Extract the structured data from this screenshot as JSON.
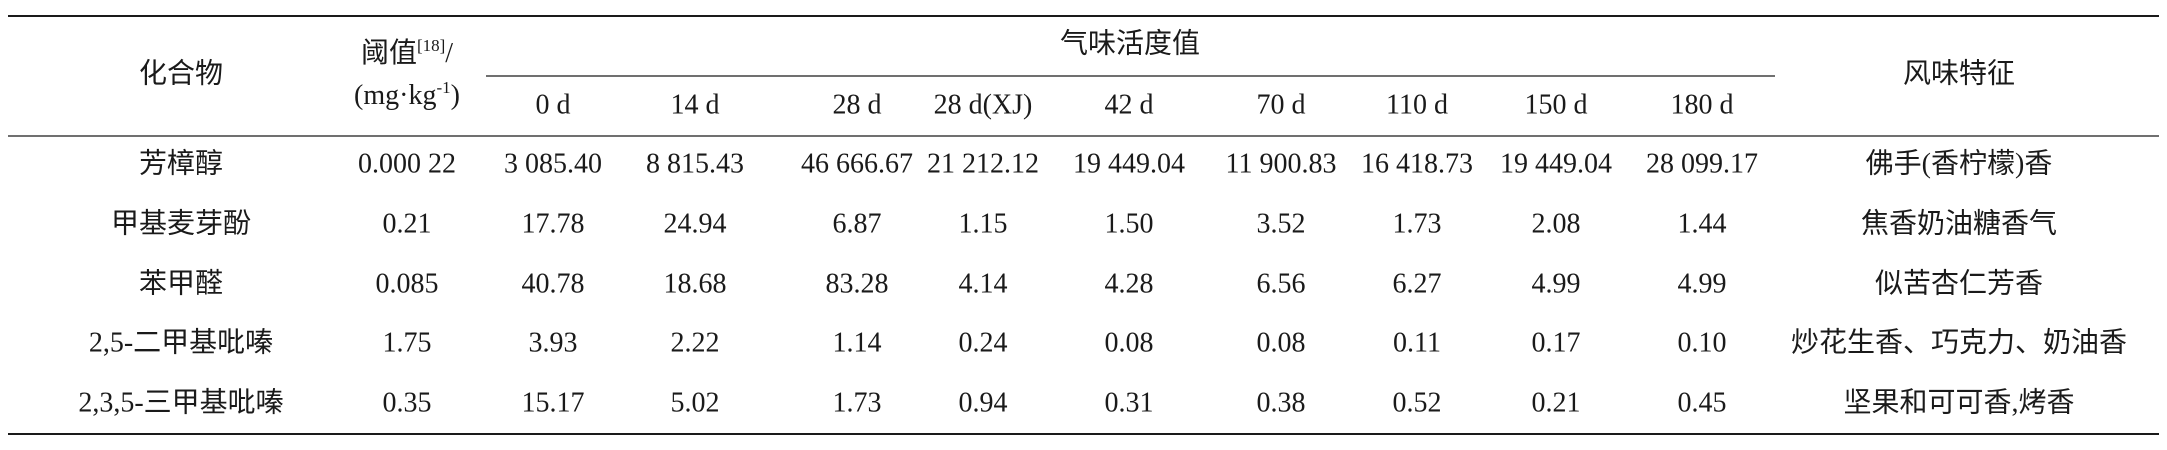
{
  "table": {
    "header": {
      "compound": "化合物",
      "threshold": {
        "text": "阈值",
        "ref": "[18]",
        "slash": "/",
        "unit": "(mg·kg",
        "exp": "-1",
        "close": ")"
      },
      "oav": "气味活度值",
      "flavor": "风味特征",
      "days": [
        "0 d",
        "14 d",
        "28 d",
        "28 d(XJ)",
        "42 d",
        "70 d",
        "110 d",
        "150 d",
        "180 d"
      ]
    },
    "rows": [
      [
        "芳樟醇",
        "0.000 22",
        "3 085.40",
        "8 815.43",
        "46 666.67",
        "21 212.12",
        "19 449.04",
        "11 900.83",
        "16 418.73",
        "19 449.04",
        "28 099.17",
        "佛手(香柠檬)香"
      ],
      [
        "甲基麦芽酚",
        "0.21",
        "17.78",
        "24.94",
        "6.87",
        "1.15",
        "1.50",
        "3.52",
        "1.73",
        "2.08",
        "1.44",
        "焦香奶油糖香气"
      ],
      [
        "苯甲醛",
        "0.085",
        "40.78",
        "18.68",
        "83.28",
        "4.14",
        "4.28",
        "6.56",
        "6.27",
        "4.99",
        "4.99",
        "似苦杏仁芳香"
      ],
      [
        "2,5-二甲基吡嗪",
        "1.75",
        "3.93",
        "2.22",
        "1.14",
        "0.24",
        "0.08",
        "0.08",
        "0.11",
        "0.17",
        "0.10",
        "炒花生香、巧克力、奶油香"
      ],
      [
        "2,3,5-三甲基吡嗪",
        "0.35",
        "15.17",
        "5.02",
        "1.73",
        "0.94",
        "0.31",
        "0.38",
        "0.52",
        "0.21",
        "0.45",
        "坚果和可可香,烤香"
      ]
    ]
  }
}
